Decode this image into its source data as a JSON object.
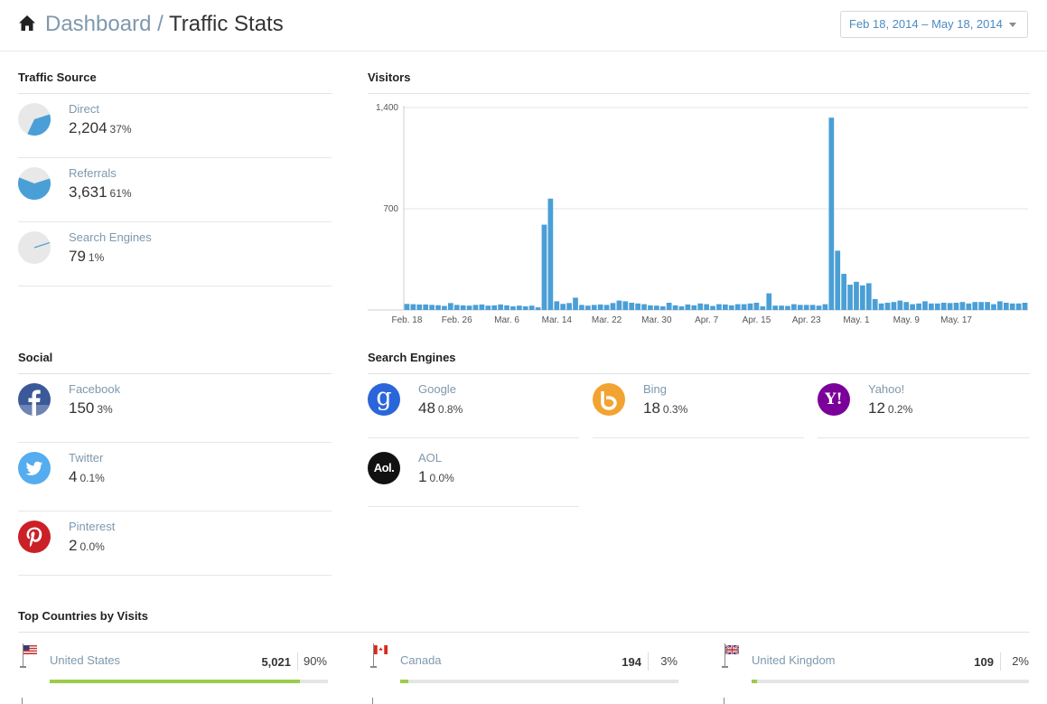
{
  "header": {
    "breadcrumb_link": "Dashboard",
    "breadcrumb_sep": "/",
    "breadcrumb_current": "Traffic Stats",
    "date_range": "Feb 18, 2014 – May 18, 2014"
  },
  "traffic_source": {
    "title": "Traffic Source",
    "items": [
      {
        "label": "Direct",
        "count": "2,204",
        "pct": "37%",
        "share": 0.37
      },
      {
        "label": "Referrals",
        "count": "3,631",
        "pct": "61%",
        "share": 0.61
      },
      {
        "label": "Search Engines",
        "count": "79",
        "pct": "1%",
        "share": 0.01
      }
    ]
  },
  "visitors": {
    "title": "Visitors",
    "chart_data": {
      "type": "bar",
      "ylim": [
        0,
        1400
      ],
      "y_ticks": [
        "1,400",
        "700"
      ],
      "y_tick_values": [
        1400,
        700
      ],
      "x_tick_labels": [
        "Feb. 18",
        "Feb. 26",
        "Mar. 6",
        "Mar. 14",
        "Mar. 22",
        "Mar. 30",
        "Apr. 7",
        "Apr. 15",
        "Apr. 23",
        "May. 1",
        "May. 9",
        "May. 17"
      ],
      "values": [
        42,
        40,
        38,
        38,
        35,
        33,
        28,
        48,
        35,
        32,
        30,
        35,
        38,
        30,
        32,
        38,
        32,
        25,
        30,
        25,
        30,
        18,
        590,
        770,
        60,
        42,
        48,
        85,
        35,
        30,
        35,
        38,
        35,
        48,
        65,
        60,
        50,
        45,
        40,
        32,
        30,
        25,
        50,
        32,
        25,
        38,
        32,
        45,
        40,
        28,
        40,
        38,
        32,
        40,
        40,
        45,
        50,
        25,
        115,
        30,
        30,
        28,
        40,
        35,
        35,
        35,
        30,
        40,
        1330,
        410,
        250,
        175,
        195,
        170,
        185,
        75,
        45,
        50,
        55,
        65,
        55,
        40,
        45,
        60,
        45,
        45,
        50,
        48,
        50,
        55,
        45,
        55,
        55,
        55,
        40,
        60,
        50,
        45,
        45,
        50
      ]
    }
  },
  "social": {
    "title": "Social",
    "items": [
      {
        "label": "Facebook",
        "count": "150",
        "pct": "3%"
      },
      {
        "label": "Twitter",
        "count": "4",
        "pct": "0.1%"
      },
      {
        "label": "Pinterest",
        "count": "2",
        "pct": "0.0%"
      }
    ]
  },
  "search_engines": {
    "title": "Search Engines",
    "items": [
      {
        "label": "Google",
        "count": "48",
        "pct": "0.8%",
        "glyph": "g"
      },
      {
        "label": "Bing",
        "count": "18",
        "pct": "0.3%",
        "glyph": "b"
      },
      {
        "label": "Yahoo!",
        "count": "12",
        "pct": "0.2%",
        "glyph": "Y!"
      },
      {
        "label": "AOL",
        "count": "1",
        "pct": "0.0%",
        "glyph": "Aol."
      }
    ]
  },
  "countries": {
    "title": "Top Countries by Visits",
    "items": [
      {
        "name": "United States",
        "count": "5,021",
        "pct": "90%",
        "share": 0.9
      },
      {
        "name": "Canada",
        "count": "194",
        "pct": "3%",
        "share": 0.03
      },
      {
        "name": "United Kingdom",
        "count": "109",
        "pct": "2%",
        "share": 0.02
      }
    ]
  },
  "colors": {
    "accent": "#4a9fd6",
    "pie_bg": "#e8e8e8",
    "country_bar": "#9ccb4a",
    "facebook": "#3b5998",
    "twitter": "#55acee",
    "pinterest": "#cb2027",
    "google": "#2a66d9",
    "bing": "#f2a332",
    "yahoo": "#7b0099",
    "aol": "#111111"
  }
}
